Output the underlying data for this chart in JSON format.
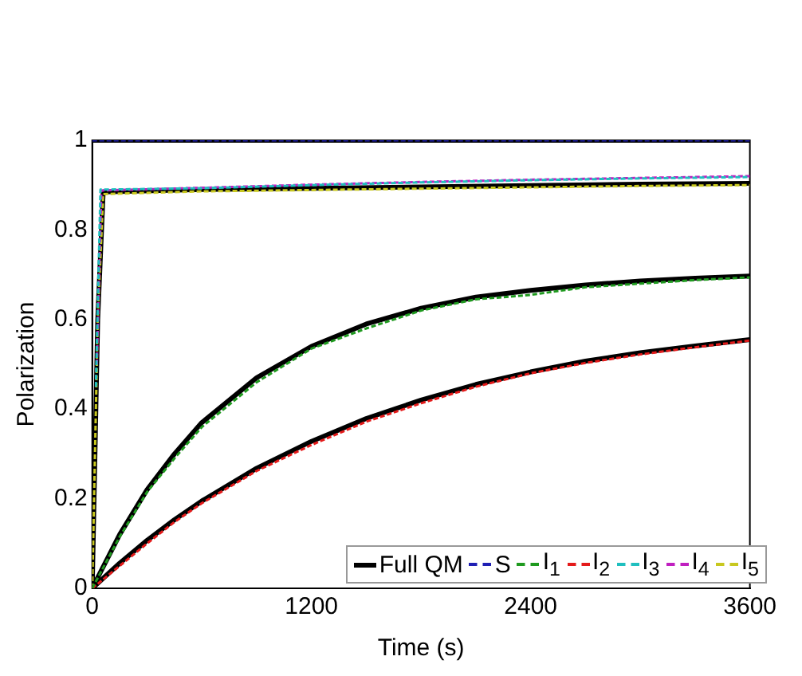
{
  "chart_data": {
    "type": "line",
    "xlabel": "Time (s)",
    "ylabel": "Polarization",
    "xlim": [
      0,
      3600
    ],
    "xticks": [
      0,
      1200,
      2400,
      3600
    ],
    "ylim": [
      0,
      1
    ],
    "yticks": [
      0,
      0.2,
      0.4,
      0.6,
      0.8,
      1
    ],
    "grid": false,
    "legend": "bottom right",
    "marker": "none",
    "series": [
      {
        "name": "Full QM",
        "color": "#000000",
        "line_style": "solid",
        "x": [
          0,
          30,
          60,
          600,
          1200,
          1800,
          2400,
          3000,
          3600
        ],
        "values": [
          0,
          0.6,
          0.885,
          0.89,
          0.893,
          0.896,
          0.899,
          0.902,
          0.904
        ]
      },
      {
        "color": "#000000",
        "line_style": "solid",
        "x": [
          0,
          3600
        ],
        "values": [
          1,
          1
        ]
      },
      {
        "color": "#000000",
        "line_style": "solid",
        "x": [
          0,
          150,
          300,
          450,
          600,
          900,
          1200,
          1500,
          1800,
          2100,
          2400,
          2700,
          3000,
          3300,
          3600
        ],
        "values": [
          0,
          0.12,
          0.22,
          0.3,
          0.37,
          0.47,
          0.54,
          0.59,
          0.625,
          0.65,
          0.665,
          0.677,
          0.686,
          0.692,
          0.697
        ]
      },
      {
        "color": "#000000",
        "line_style": "solid",
        "x": [
          0,
          150,
          300,
          450,
          600,
          900,
          1200,
          1500,
          1800,
          2100,
          2400,
          2700,
          3000,
          3300,
          3600
        ],
        "values": [
          0,
          0.056,
          0.107,
          0.153,
          0.195,
          0.268,
          0.328,
          0.379,
          0.42,
          0.455,
          0.483,
          0.507,
          0.526,
          0.541,
          0.555
        ]
      },
      {
        "name": "S",
        "color": "#1f1fb4",
        "line_style": "dashed",
        "x": [
          0,
          3600
        ],
        "values": [
          1,
          1
        ]
      },
      {
        "name": "I$_{1}$",
        "color": "#1f9a1f",
        "line_style": "dashed",
        "x": [
          0,
          150,
          300,
          450,
          600,
          900,
          1200,
          1500,
          1800,
          2100,
          2400,
          2700,
          3000,
          3300,
          3600
        ],
        "values": [
          0,
          0.115,
          0.215,
          0.29,
          0.36,
          0.46,
          0.535,
          0.58,
          0.62,
          0.645,
          0.655,
          0.672,
          0.68,
          0.688,
          0.694
        ]
      },
      {
        "name": "I$_{2}$",
        "color": "#e41a1a",
        "line_style": "dashed",
        "x": [
          0,
          150,
          300,
          450,
          600,
          900,
          1200,
          1500,
          1800,
          2100,
          2400,
          2700,
          3000,
          3300,
          3600
        ],
        "values": [
          0,
          0.05,
          0.1,
          0.148,
          0.19,
          0.262,
          0.32,
          0.372,
          0.413,
          0.45,
          0.48,
          0.503,
          0.522,
          0.538,
          0.553
        ]
      },
      {
        "name": "I$_{3}$",
        "color": "#1fbfbf",
        "line_style": "dashed",
        "x": [
          20,
          45,
          600,
          1200,
          1800,
          2400,
          3000,
          3600
        ],
        "values": [
          0.45,
          0.89,
          0.893,
          0.9,
          0.906,
          0.911,
          0.915,
          0.918
        ]
      },
      {
        "name": "I$_{4}$",
        "color": "#c01fc0",
        "line_style": "dashed",
        "x": [
          25,
          50,
          600,
          1200,
          1800,
          2400,
          3000,
          3600
        ],
        "values": [
          0.5,
          0.888,
          0.894,
          0.901,
          0.907,
          0.912,
          0.916,
          0.92
        ]
      },
      {
        "name": "I$_{5}$",
        "color": "#c8c81f",
        "line_style": "dashed",
        "x": [
          0,
          30,
          60,
          600,
          1200,
          1800,
          2400,
          3000,
          3600
        ],
        "values": [
          0,
          0.6,
          0.88,
          0.886,
          0.889,
          0.892,
          0.895,
          0.898,
          0.9
        ]
      }
    ]
  }
}
